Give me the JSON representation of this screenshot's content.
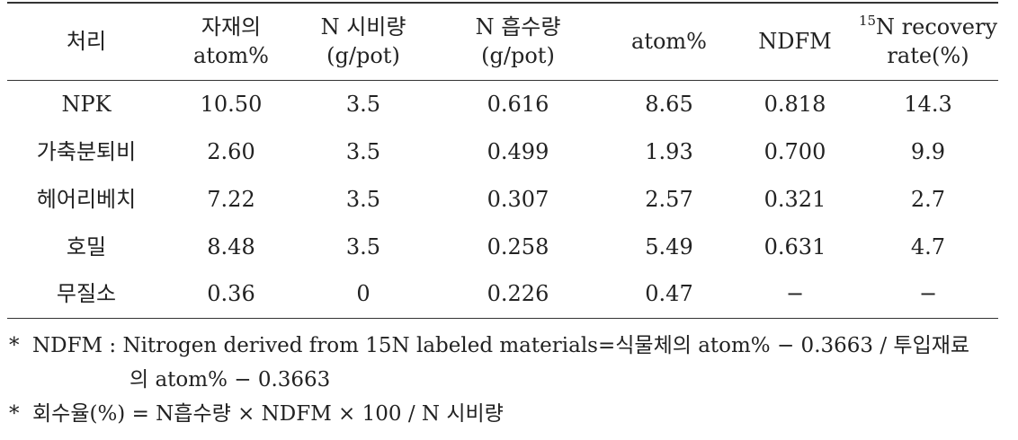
{
  "table": {
    "headers": [
      {
        "lines": [
          "처리"
        ]
      },
      {
        "lines": [
          "자재의",
          "atom%"
        ]
      },
      {
        "lines": [
          "N 시비량",
          "(g/pot)"
        ]
      },
      {
        "lines": [
          "N 흡수량",
          "(g/pot)"
        ]
      },
      {
        "lines": [
          "atom%"
        ]
      },
      {
        "lines": [
          "NDFM"
        ]
      },
      {
        "sup": "15",
        "lines": [
          "N recovery",
          "rate(%)"
        ]
      }
    ],
    "rows": [
      [
        "NPK",
        "10.50",
        "3.5",
        "0.616",
        "8.65",
        "0.818",
        "14.3"
      ],
      [
        "가축분퇴비",
        "2.60",
        "3.5",
        "0.499",
        "1.93",
        "0.700",
        "9.9"
      ],
      [
        "헤어리베치",
        "7.22",
        "3.5",
        "0.307",
        "2.57",
        "0.321",
        "2.7"
      ],
      [
        "호밀",
        "8.48",
        "3.5",
        "0.258",
        "5.49",
        "0.631",
        "4.7"
      ],
      [
        "무질소",
        "0.36",
        "0",
        "0.226",
        "0.47",
        "−",
        "−"
      ]
    ]
  },
  "notes": {
    "mark": "*",
    "ndfm_line1": "NDFM : Nitrogen derived from 15N labeled materials=식물체의 atom% − 0.3663 / 투입재료",
    "ndfm_line2": "의 atom% − 0.3663",
    "recovery": "회수율(%) = N흡수량 × NDFM × 100 / N 시비량"
  }
}
